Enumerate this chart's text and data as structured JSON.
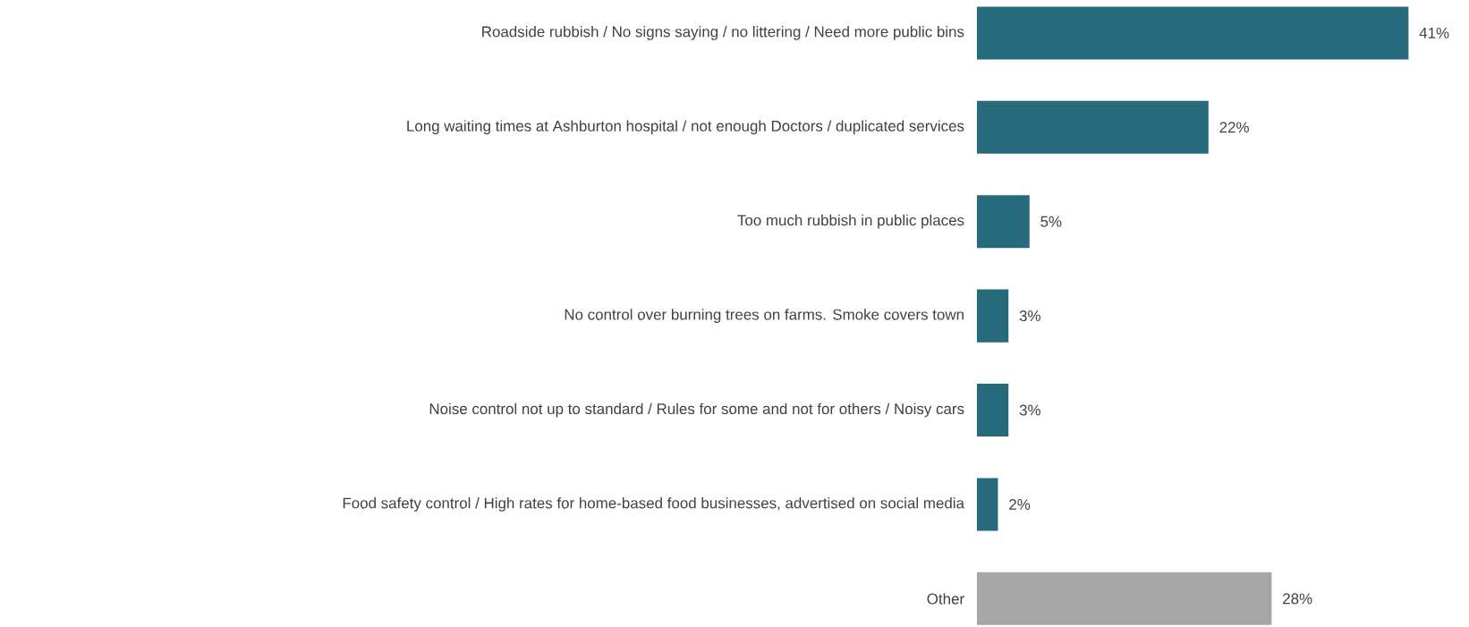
{
  "chart_data": {
    "type": "bar",
    "orientation": "horizontal",
    "categories": [
      "Roadside rubbish / No signs saying / no littering / Need more public bins",
      "Long waiting times at Ashburton hospital / not enough Doctors / duplicated services",
      "Too much rubbish in public places",
      "No control over burning trees on farms. Smoke covers town",
      "Noise control not up to standard / Rules for some and not for others / Noisy cars",
      "Food safety control / High rates for home-based food businesses, advertised on social media",
      "Other"
    ],
    "values": [
      41,
      22,
      5,
      3,
      3,
      2,
      28
    ],
    "colors": [
      "#266a7b",
      "#266a7b",
      "#266a7b",
      "#266a7b",
      "#266a7b",
      "#266a7b",
      "#a6a6a6"
    ],
    "value_labels": [
      "41%",
      "22%",
      "5%",
      "3%",
      "3%",
      "2%",
      "28%"
    ]
  }
}
